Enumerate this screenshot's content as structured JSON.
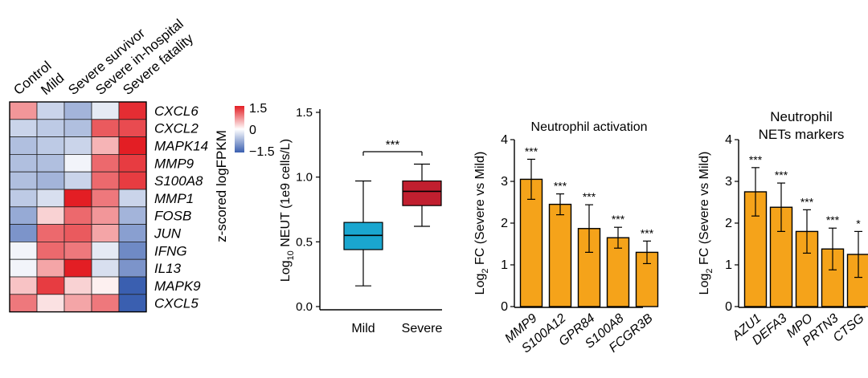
{
  "colors": {
    "heat_low": "#3a5fb0",
    "heat_mid": "#ffffff",
    "heat_high": "#e31e24",
    "box_mild": "#1aa6cf",
    "box_severe": "#c11f2f",
    "bar_fill": "#f5a31a"
  },
  "chart_data": [
    {
      "type": "heatmap",
      "columns": [
        "Control",
        "Mild",
        "Severe survivor",
        "Severe in-hospital",
        "Severe fatality"
      ],
      "rows": [
        "CXCL6",
        "CXCL2",
        "MAPK14",
        "MMP9",
        "S100A8",
        "MMP1",
        "FOSB",
        "JUN",
        "IFNG",
        "IL13",
        "MAPK9",
        "CXCL5"
      ],
      "values": [
        [
          0.7,
          -0.4,
          -0.7,
          -0.2,
          1.4
        ],
        [
          -0.4,
          -0.5,
          -0.6,
          1.1,
          1.2
        ],
        [
          -0.6,
          -0.5,
          -0.4,
          0.5,
          1.6
        ],
        [
          -0.6,
          -0.6,
          -0.1,
          1.0,
          1.3
        ],
        [
          -0.6,
          -0.7,
          -0.4,
          1.0,
          1.3
        ],
        [
          -0.5,
          -0.3,
          1.5,
          0.9,
          -0.4
        ],
        [
          -0.8,
          0.3,
          1.0,
          0.7,
          -0.7
        ],
        [
          -1.0,
          1.0,
          1.1,
          0.6,
          -0.9
        ],
        [
          -0.1,
          1.0,
          0.9,
          -0.2,
          -1.1
        ],
        [
          -0.1,
          0.6,
          1.5,
          -0.3,
          -1.0
        ],
        [
          0.4,
          1.3,
          0.3,
          0.1,
          -1.5
        ],
        [
          0.9,
          0.2,
          0.6,
          0.9,
          -1.6
        ]
      ],
      "legend": {
        "title": "z-scored logFPKM",
        "ticks": [
          "1.5",
          "0",
          "−1.5"
        ],
        "range": [
          -1.5,
          1.5
        ]
      }
    },
    {
      "type": "box",
      "categories": [
        "Mild",
        "Severe"
      ],
      "boxes": [
        {
          "min": 0.16,
          "q1": 0.44,
          "median": 0.55,
          "q3": 0.65,
          "max": 0.97
        },
        {
          "min": 0.62,
          "q1": 0.78,
          "median": 0.89,
          "q3": 0.97,
          "max": 1.1
        }
      ],
      "ylabel_prefix": "Log",
      "ylabel_sub": "10",
      "ylabel_suffix": " NEUT (1e9 cells/L)",
      "yticks": [
        "0.0",
        "0.5",
        "1.0",
        "1.5"
      ],
      "ylim": [
        0,
        1.5
      ],
      "significance": "***"
    },
    {
      "type": "bar",
      "title": "Neutrophil activation",
      "categories": [
        "MMP9",
        "S100A12",
        "GPR84",
        "S100A8",
        "FCGR3B"
      ],
      "values": [
        3.05,
        2.45,
        1.87,
        1.65,
        1.3
      ],
      "errors": [
        0.48,
        0.25,
        0.57,
        0.25,
        0.27
      ],
      "significance": [
        "***",
        "***",
        "***",
        "***",
        "***"
      ],
      "ylabel_prefix": "Log",
      "ylabel_sub": "2",
      "ylabel_suffix": " FC (Severe vs Mild)",
      "yticks": [
        "0",
        "1",
        "2",
        "3",
        "4"
      ],
      "ylim": [
        0,
        4
      ]
    },
    {
      "type": "bar",
      "title_lines": [
        "Neutrophil",
        "NETs markers"
      ],
      "categories": [
        "AZU1",
        "DEFA3",
        "MPO",
        "PRTN3",
        "CTSG"
      ],
      "values": [
        2.75,
        2.38,
        1.8,
        1.38,
        1.25
      ],
      "errors": [
        0.58,
        0.58,
        0.52,
        0.5,
        0.55
      ],
      "significance": [
        "***",
        "***",
        "***",
        "***",
        "*"
      ],
      "ylabel_prefix": "Log",
      "ylabel_sub": "2",
      "ylabel_suffix": " FC (Severe vs Mild)",
      "yticks": [
        "0",
        "1",
        "2",
        "3",
        "4"
      ],
      "ylim": [
        0,
        4
      ]
    }
  ]
}
